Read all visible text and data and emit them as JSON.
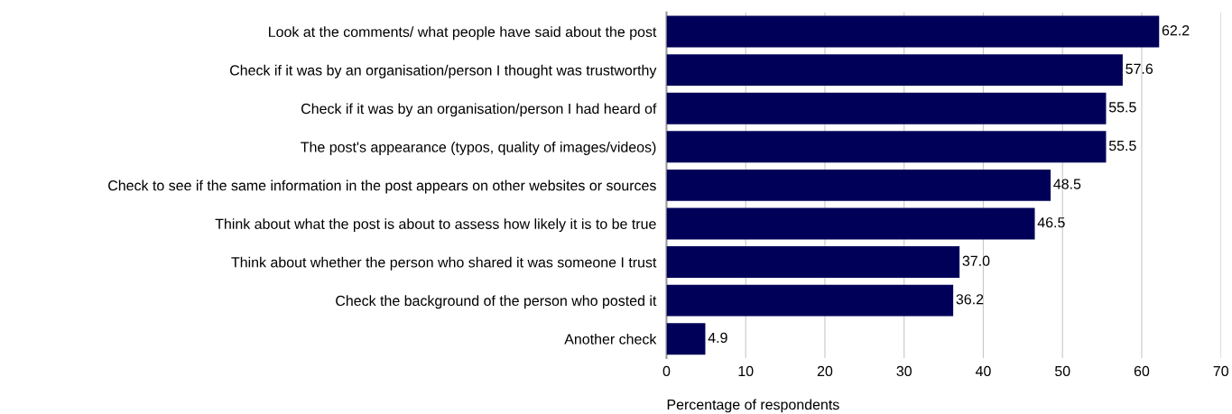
{
  "chart_data": {
    "type": "bar",
    "orientation": "horizontal",
    "xlabel": "Percentage of respondents",
    "categories": [
      "Look at the comments/ what people have said about the post",
      "Check if it was by an organisation/person I thought was trustworthy",
      "Check if it was by an organisation/person I had heard of",
      "The post's appearance (typos, quality of images/videos)",
      "Check to see if the same information in the post appears on other websites or sources",
      "Think about what the post is about to assess how likely it is to be true",
      "Think about whether the person who shared it was someone I trust",
      "Check the background of the person who posted it",
      "Another check"
    ],
    "values": [
      62.2,
      57.6,
      55.5,
      55.5,
      48.5,
      46.5,
      37.0,
      36.2,
      4.9
    ],
    "color": "#000058",
    "xlim": [
      0,
      70
    ],
    "xticks": [
      0,
      10,
      20,
      30,
      40,
      50,
      60,
      70
    ],
    "value_labels": [
      "62.2",
      "57.6",
      "55.5",
      "55.5",
      "48.5",
      "46.5",
      "37.0",
      "36.2",
      "4.9"
    ],
    "grid": "x"
  }
}
